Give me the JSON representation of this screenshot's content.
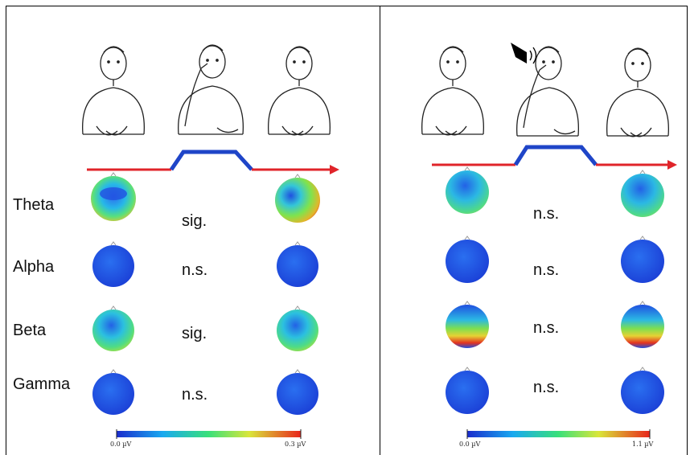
{
  "bands": [
    "Theta",
    "Alpha",
    "Beta",
    "Gamma"
  ],
  "left_panel": {
    "significance": [
      "sig.",
      "n.s.",
      "sig.",
      "n.s."
    ],
    "scale_min": "0.0 µV",
    "scale_max": "0.3 µV"
  },
  "right_panel": {
    "significance": [
      "n.s.",
      "n.s.",
      "n.s.",
      "n.s."
    ],
    "scale_min": "0.0 µV",
    "scale_max": "1.1 µV"
  },
  "colors": {
    "timeline_red": "#e0242a",
    "timeline_blue": "#1f45c8",
    "scalp_blue": "#1f5be6"
  },
  "icons": [
    "person-icon",
    "person-touching-face-icon",
    "speaker-icon"
  ]
}
